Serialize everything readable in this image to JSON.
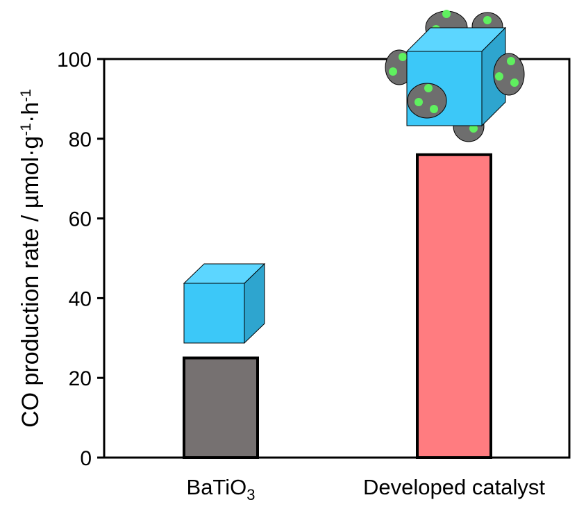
{
  "chart_data": {
    "type": "bar",
    "categories": [
      "BaTiO",
      "Developed catalyst"
    ],
    "category_subscripts": [
      "3",
      ""
    ],
    "values": [
      25,
      76
    ],
    "bar_colors": [
      "#767171",
      "#ff7c80"
    ],
    "ylabel": {
      "parts": [
        {
          "text": "CO production rate / µmol·g"
        },
        {
          "text": "-1",
          "sup": true
        },
        {
          "text": "·h"
        },
        {
          "text": "-1",
          "sup": true
        }
      ]
    },
    "ylim": [
      0,
      100
    ],
    "yticks": [
      0,
      20,
      40,
      60,
      80,
      100
    ],
    "grid": false,
    "legend": "none"
  },
  "colors": {
    "cube_front": "#3cc8f8",
    "cube_top": "#5cd6ff",
    "cube_side": "#2ea5cf",
    "particle": "#6e6e6e",
    "particle_dot": "#5ff05f",
    "axis": "#000000"
  }
}
